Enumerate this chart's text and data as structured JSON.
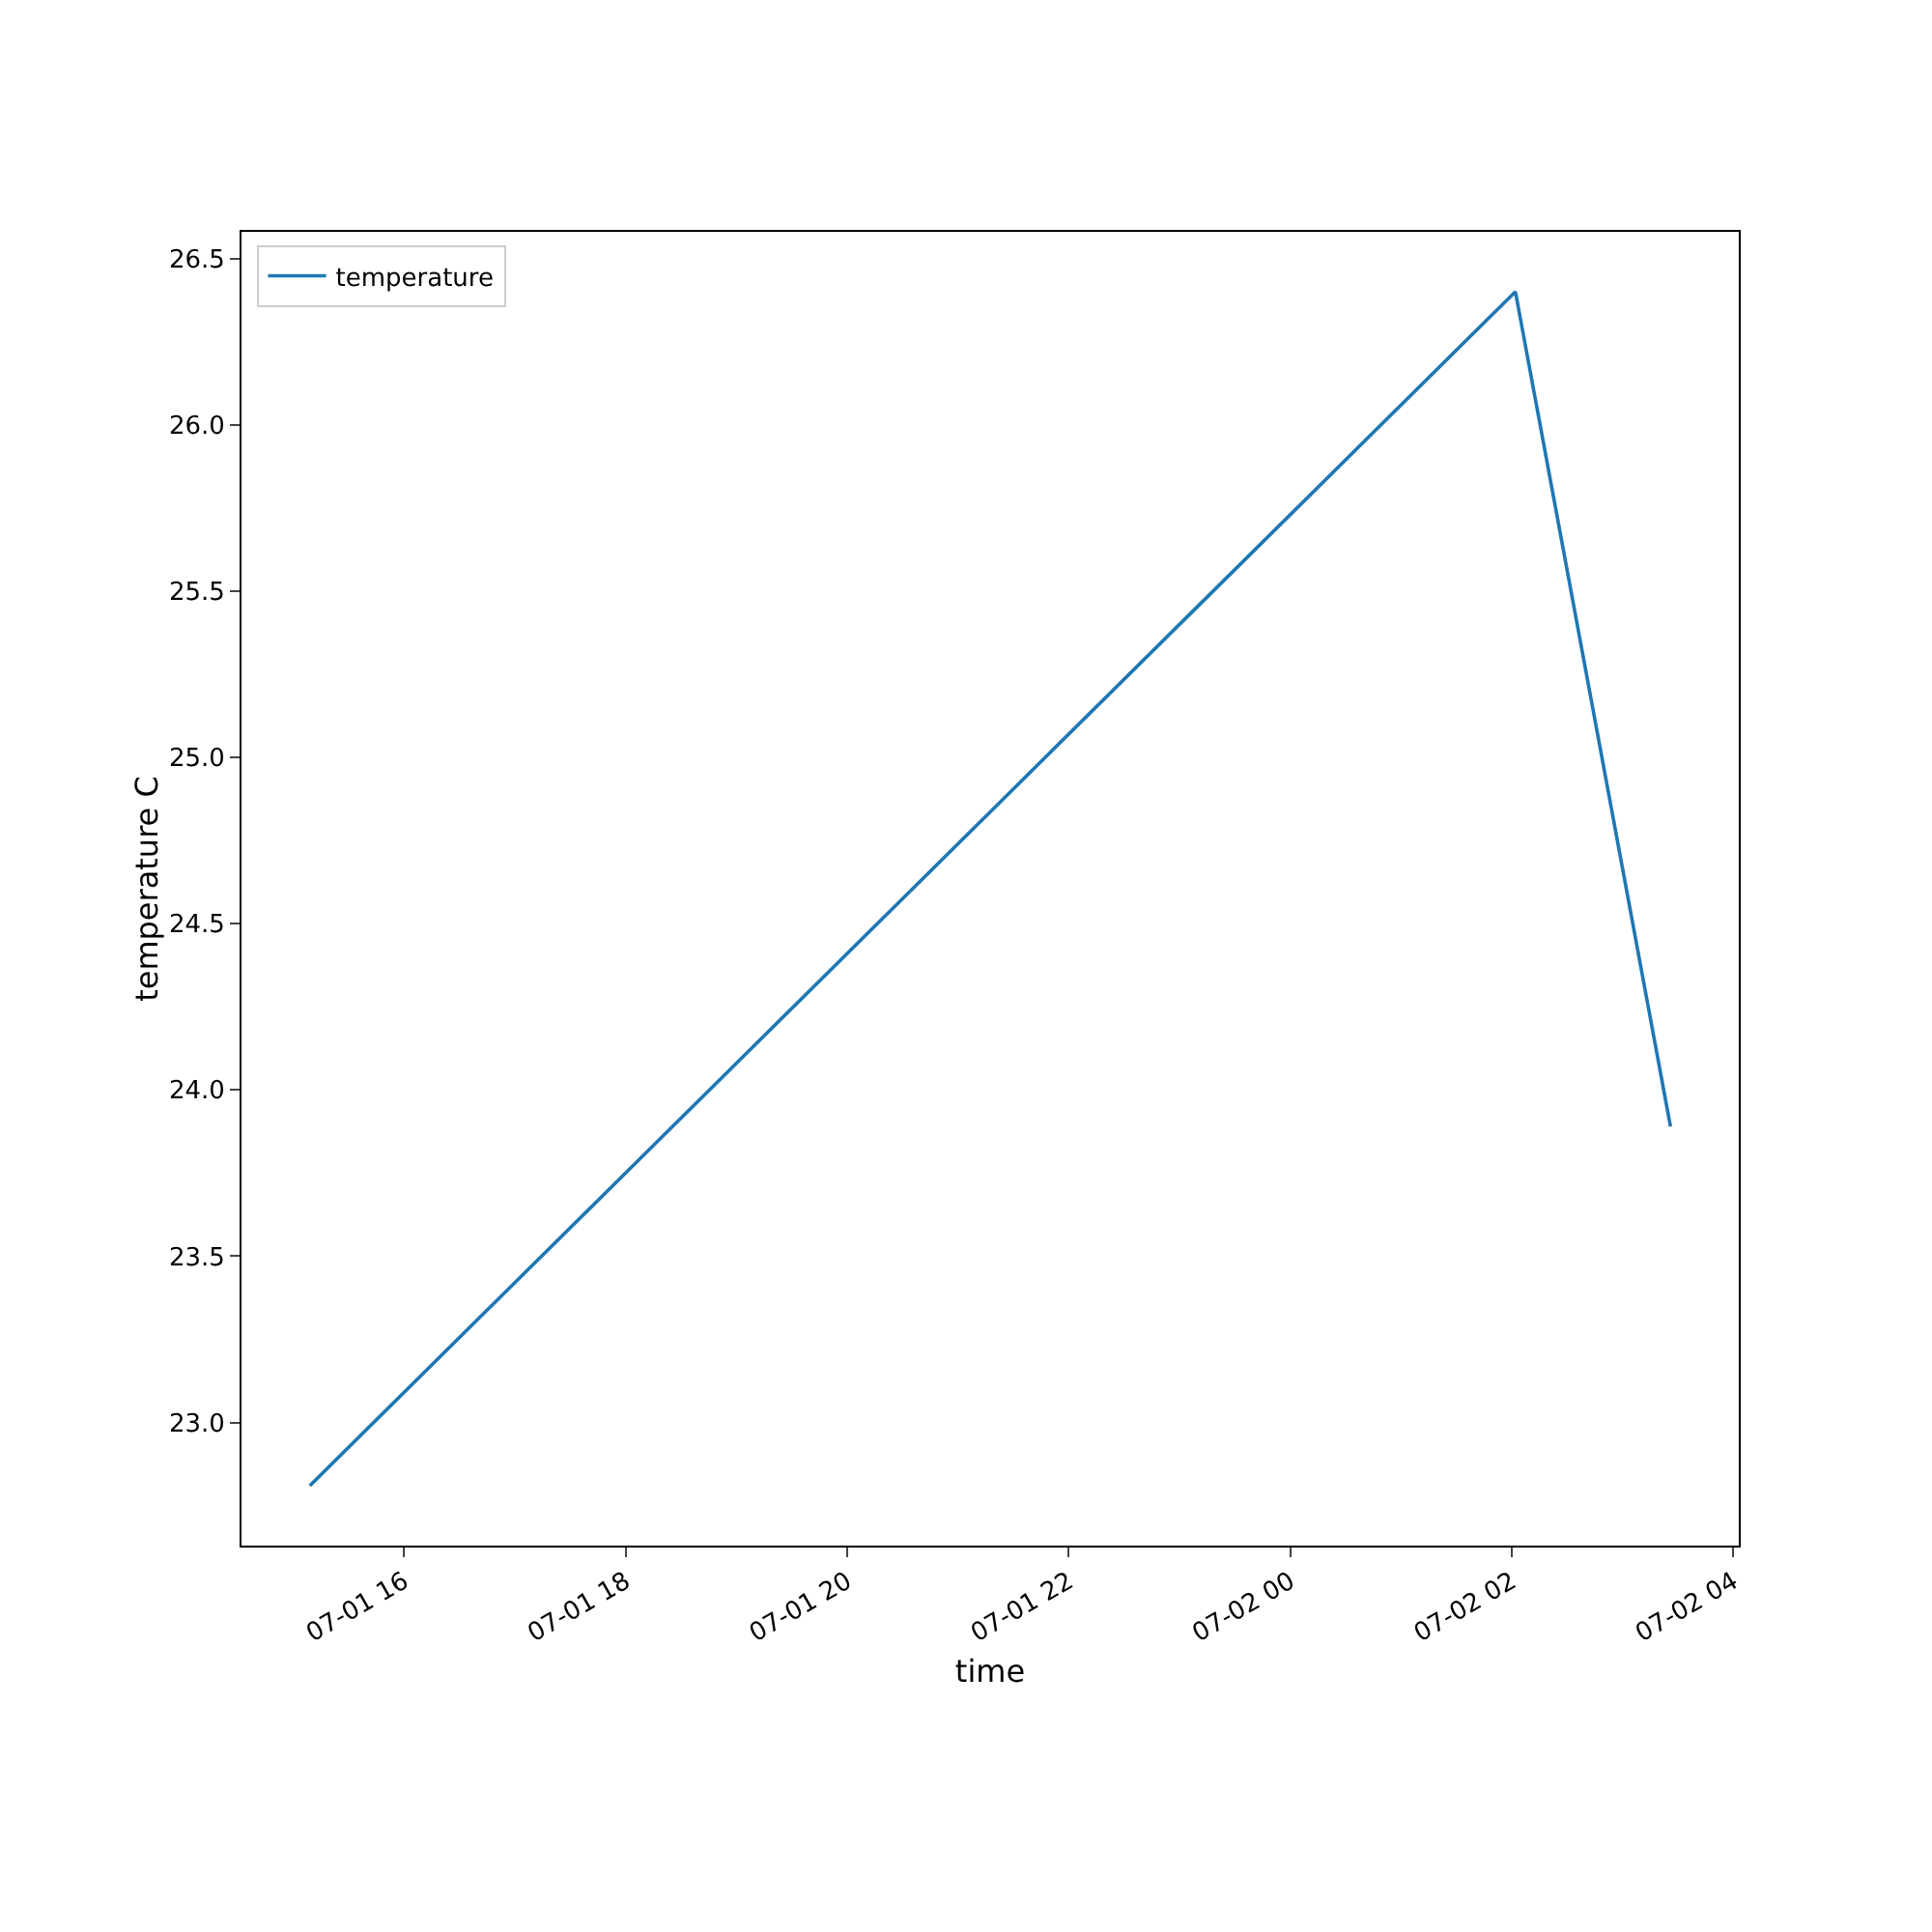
{
  "chart_data": {
    "type": "line",
    "xlabel": "time",
    "ylabel": "temperature C",
    "x": [
      "--07-01T15:09",
      "--07-02T02:02",
      "--07-02T03:26"
    ],
    "series": [
      {
        "name": "temperature",
        "color": "#1f77b4",
        "values": [
          22.81,
          26.4,
          23.89
        ]
      }
    ],
    "xlim": [
      "--07-01T14:32",
      "--07-02T04:03"
    ],
    "xticks": [
      {
        "value": "--07-01T16:00",
        "label": "07-01 16"
      },
      {
        "value": "--07-01T18:00",
        "label": "07-01 18"
      },
      {
        "value": "--07-01T20:00",
        "label": "07-01 20"
      },
      {
        "value": "--07-01T22:00",
        "label": "07-01 22"
      },
      {
        "value": "--07-02T00:00",
        "label": "07-02 00"
      },
      {
        "value": "--07-02T02:00",
        "label": "07-02 02"
      },
      {
        "value": "--07-02T04:00",
        "label": "07-02 04"
      }
    ],
    "ylim": [
      22.63,
      26.58
    ],
    "yticks": [
      {
        "value": 23,
        "label": "23.0"
      },
      {
        "value": 23.5,
        "label": "23.5"
      },
      {
        "value": 24,
        "label": "24.0"
      },
      {
        "value": 24.5,
        "label": "24.5"
      },
      {
        "value": 25,
        "label": "25.0"
      },
      {
        "value": 25.5,
        "label": "25.5"
      },
      {
        "value": 26,
        "label": "26.0"
      },
      {
        "value": 26.5,
        "label": "26.5"
      }
    ],
    "grid": false,
    "legend": "top left",
    "line_style": "solid",
    "marker": "none"
  }
}
